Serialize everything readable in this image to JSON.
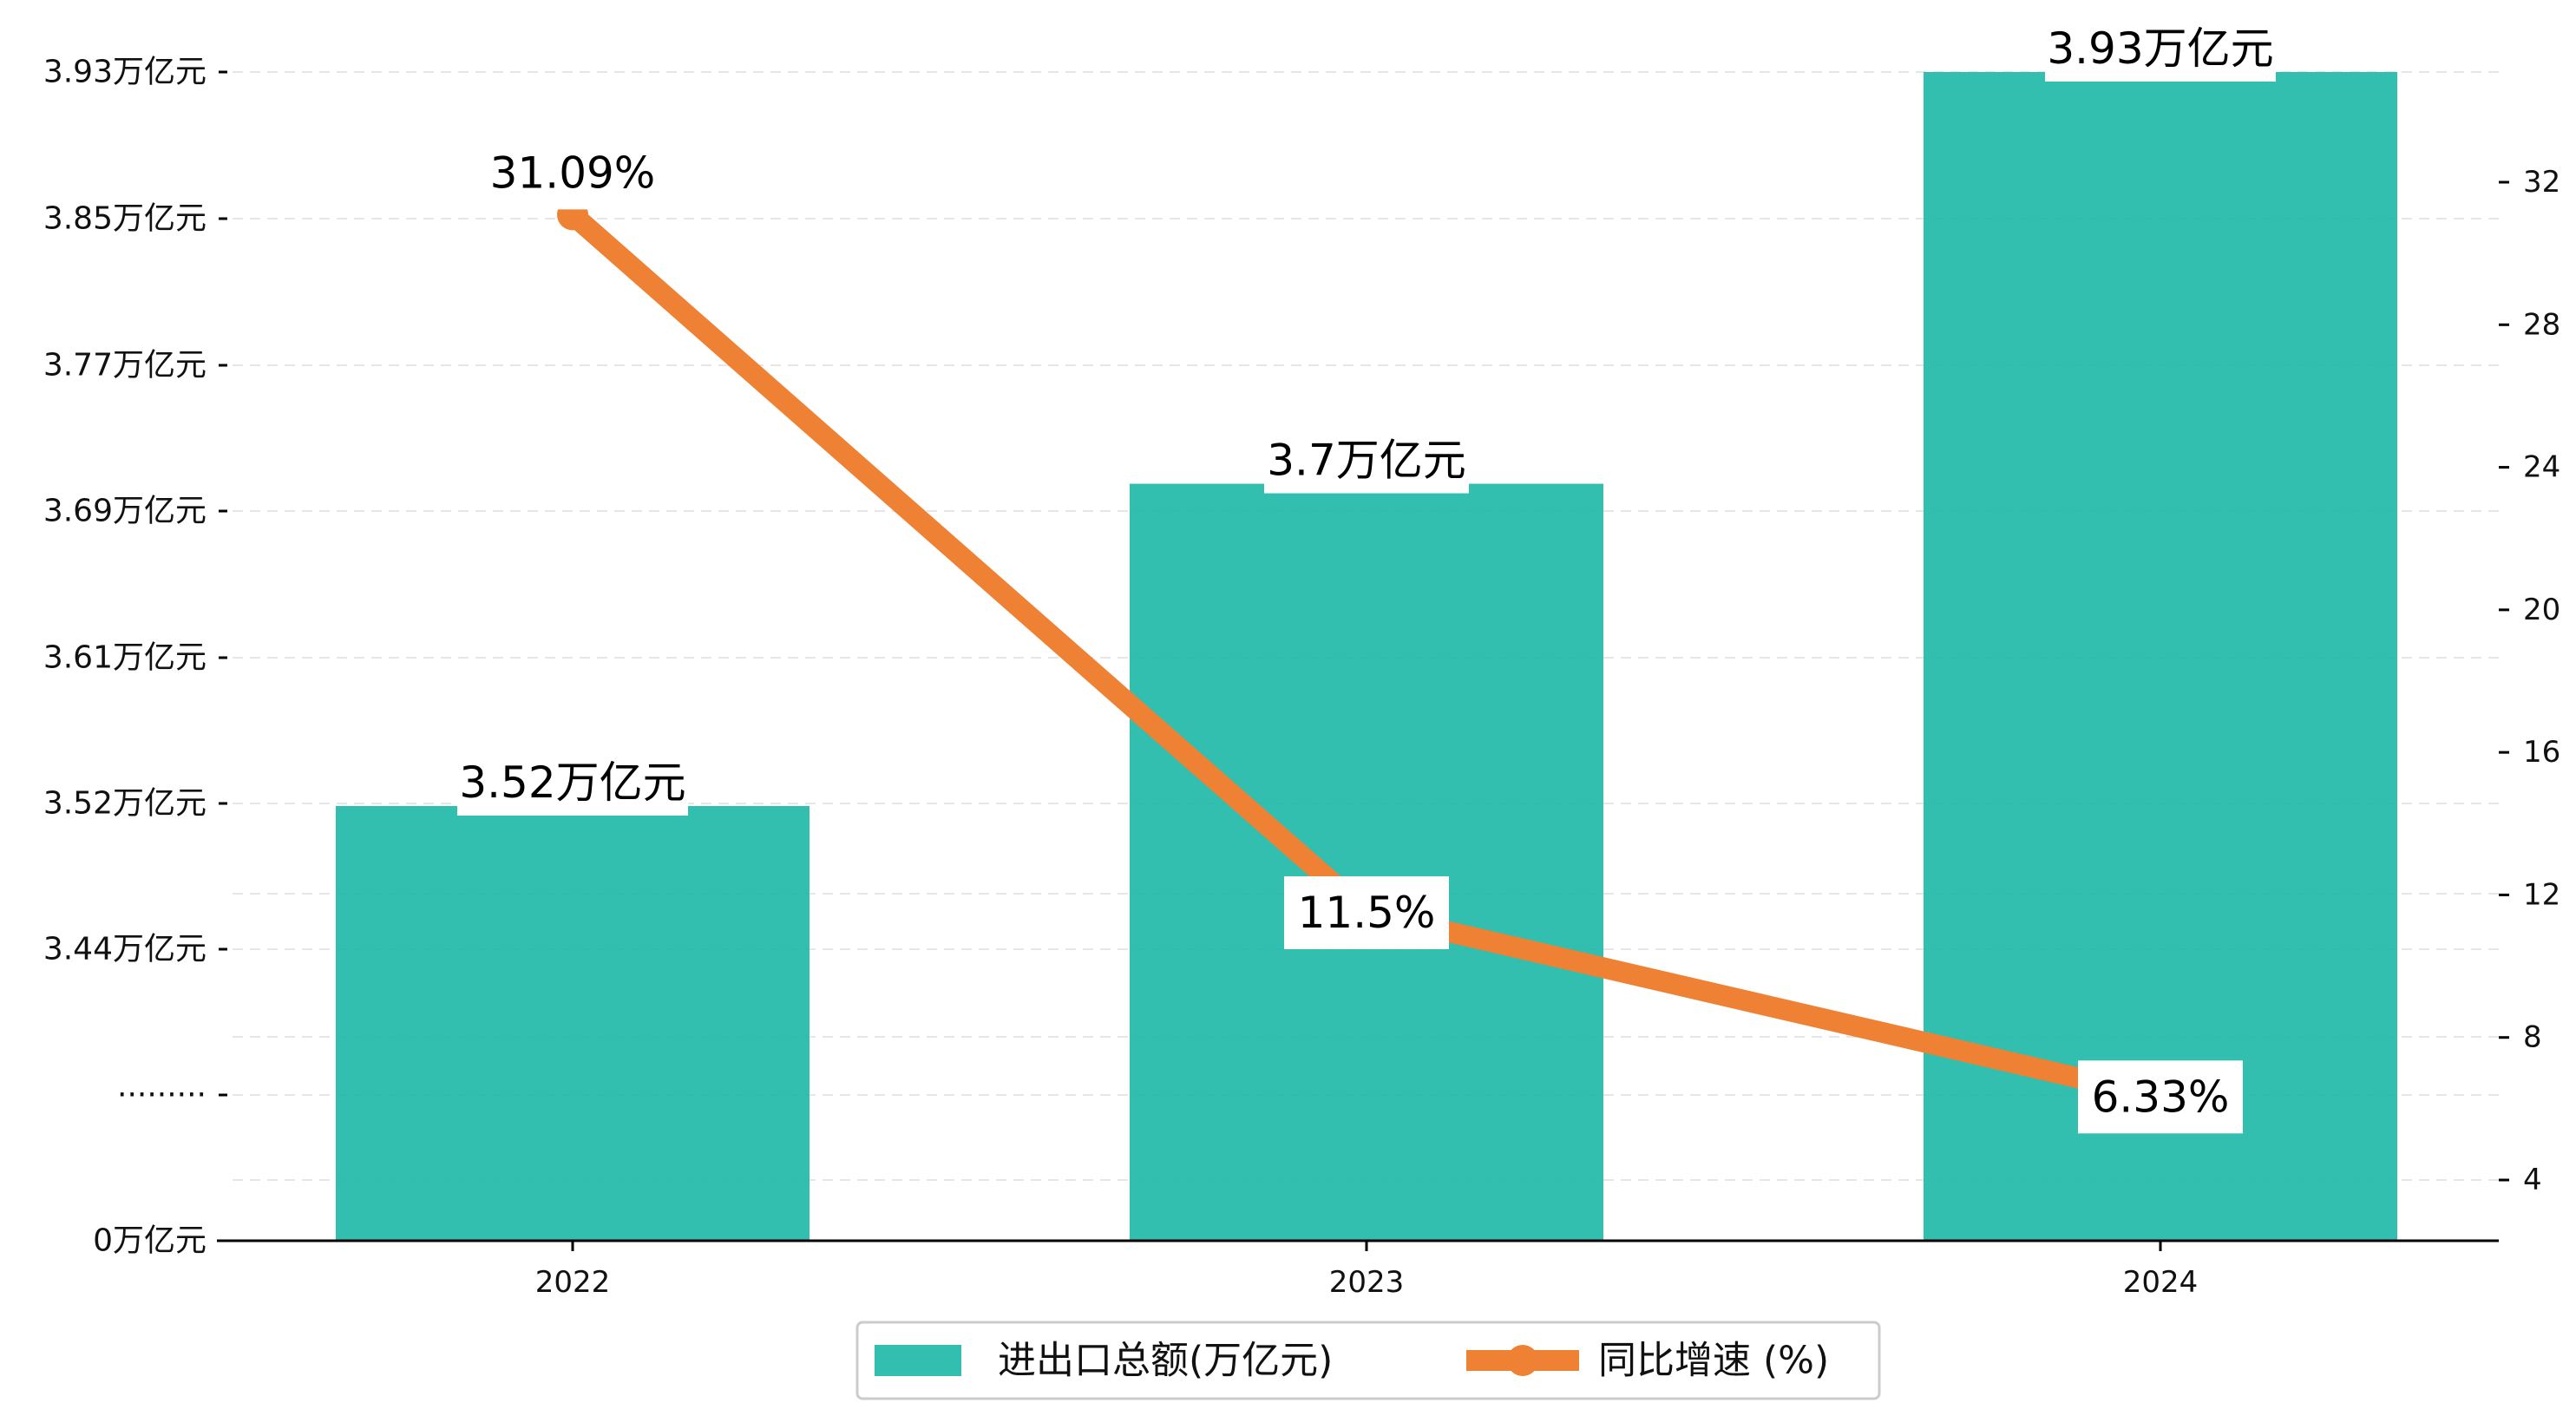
{
  "chart_data": {
    "type": "bar",
    "categories": [
      "2022",
      "2023",
      "2024"
    ],
    "series": [
      {
        "name": "进出口总额(万亿元)",
        "type": "bar",
        "axis": "left",
        "values": [
          3.52,
          3.7,
          3.93
        ],
        "labels": [
          "3.52万亿元",
          "3.7万亿元",
          "3.93万亿元"
        ],
        "color": "#1cb8a6"
      },
      {
        "name": "同比增速 (%)",
        "type": "line",
        "axis": "right",
        "values": [
          31.09,
          11.5,
          6.33
        ],
        "labels": [
          "31.09%",
          "11.5%",
          "6.33%"
        ],
        "color": "#ee8133"
      }
    ],
    "left_axis": {
      "ticks": [
        "0万亿元",
        "·········",
        "3.44万亿元",
        "3.52万亿元",
        "3.61万亿元",
        "3.69万亿元",
        "3.77万亿元",
        "3.85万亿元",
        "3.93万亿元"
      ],
      "note": "broken axis: 0 at bottom, then gap, then 3.36 to 3.93"
    },
    "right_axis": {
      "ticks": [
        4,
        8,
        12,
        16,
        20,
        24,
        28,
        32
      ],
      "ylim": [
        2,
        35
      ]
    },
    "grid": "horizontal-dashed",
    "legend": "bottom-center"
  }
}
